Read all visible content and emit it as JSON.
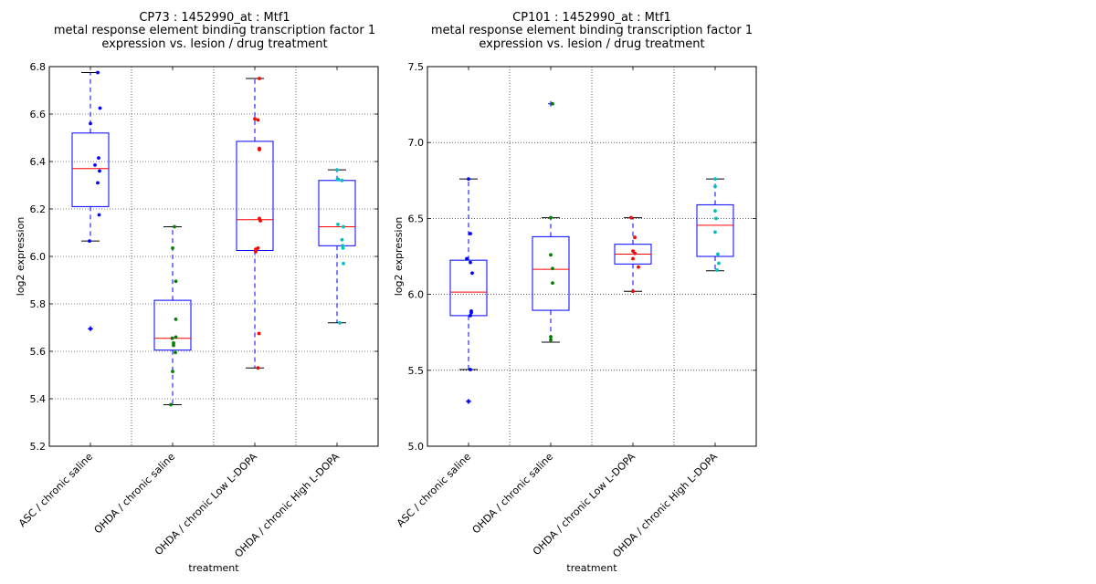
{
  "chart_data": [
    {
      "type": "box",
      "title_lines": [
        "CP73 : 1452990_at : Mtf1",
        "metal response element binding transcription factor 1",
        "expression vs. lesion / drug treatment"
      ],
      "xlabel": "treatment",
      "ylabel": "log2 expression",
      "ylim": [
        5.2,
        6.8
      ],
      "yticks": [
        5.2,
        5.4,
        5.6,
        5.8,
        6.0,
        6.2,
        6.4,
        6.6,
        6.8
      ],
      "ytick_labels": [
        "5.2",
        "5.4",
        "5.6",
        "5.8",
        "6.0",
        "6.2",
        "6.4",
        "6.6",
        "6.8"
      ],
      "grid": true,
      "categories": [
        "ASC / chronic saline",
        "OHDA / chronic saline",
        "OHDA / chronic Low L-DOPA",
        "OHDA / chronic High L-DOPA"
      ],
      "boxes": [
        {
          "q1": 6.21,
          "median": 6.37,
          "q3": 6.52,
          "whisker_low": 6.065,
          "whisker_high": 6.775,
          "outliers": [
            5.695
          ]
        },
        {
          "q1": 5.605,
          "median": 5.655,
          "q3": 5.815,
          "whisker_low": 5.375,
          "whisker_high": 6.125,
          "outliers": []
        },
        {
          "q1": 6.025,
          "median": 6.155,
          "q3": 6.485,
          "whisker_low": 5.53,
          "whisker_high": 6.75,
          "outliers": []
        },
        {
          "q1": 6.045,
          "median": 6.125,
          "q3": 6.32,
          "whisker_low": 5.72,
          "whisker_high": 6.365,
          "outliers": []
        }
      ],
      "points": [
        [
          6.775,
          6.625,
          6.56,
          6.415,
          6.385,
          6.36,
          6.31,
          6.175,
          6.065,
          5.695
        ],
        [
          6.125,
          6.035,
          5.895,
          5.735,
          5.66,
          5.655,
          5.635,
          5.625,
          5.595,
          5.515,
          5.375
        ],
        [
          6.75,
          6.58,
          6.575,
          6.455,
          6.45,
          6.16,
          6.15,
          6.035,
          6.03,
          6.02,
          5.675,
          5.53
        ],
        [
          6.365,
          6.325,
          6.325,
          6.32,
          6.135,
          6.125,
          6.07,
          6.045,
          6.035,
          5.97,
          5.72
        ]
      ],
      "point_colors": [
        "#0000ff",
        "#008000",
        "#ff0000",
        "#00bfbf"
      ]
    },
    {
      "type": "box",
      "title_lines": [
        "CP101 : 1452990_at : Mtf1",
        "metal response element binding transcription factor 1",
        "expression vs. lesion / drug treatment"
      ],
      "xlabel": "treatment",
      "ylabel": "log2 expression",
      "ylim": [
        5.0,
        7.5
      ],
      "yticks": [
        5.0,
        5.5,
        6.0,
        6.5,
        7.0,
        7.5
      ],
      "ytick_labels": [
        "5.0",
        "5.5",
        "6.0",
        "6.5",
        "7.0",
        "7.5"
      ],
      "grid": true,
      "categories": [
        "ASC / chronic saline",
        "OHDA / chronic saline",
        "OHDA / chronic Low L-DOPA",
        "OHDA / chronic High L-DOPA"
      ],
      "boxes": [
        {
          "q1": 5.86,
          "median": 6.015,
          "q3": 6.225,
          "whisker_low": 5.505,
          "whisker_high": 6.76,
          "outliers": [
            5.295
          ]
        },
        {
          "q1": 5.895,
          "median": 6.165,
          "q3": 6.38,
          "whisker_low": 5.685,
          "whisker_high": 6.505,
          "outliers": [
            7.255
          ]
        },
        {
          "q1": 6.2,
          "median": 6.265,
          "q3": 6.33,
          "whisker_low": 6.02,
          "whisker_high": 6.505,
          "outliers": []
        },
        {
          "q1": 6.25,
          "median": 6.455,
          "q3": 6.59,
          "whisker_low": 6.155,
          "whisker_high": 6.76,
          "outliers": []
        }
      ],
      "points": [
        [
          6.76,
          6.4,
          6.235,
          6.21,
          6.14,
          5.89,
          5.88,
          5.86,
          5.505,
          5.295
        ],
        [
          7.255,
          6.505,
          6.26,
          6.17,
          6.075,
          5.72,
          5.7
        ],
        [
          6.505,
          6.375,
          6.285,
          6.27,
          6.235,
          6.18,
          6.02
        ],
        [
          6.76,
          6.71,
          6.55,
          6.5,
          6.41,
          6.265,
          6.205,
          6.16
        ]
      ],
      "point_colors": [
        "#0000ff",
        "#008000",
        "#ff0000",
        "#00bfbf"
      ]
    }
  ]
}
